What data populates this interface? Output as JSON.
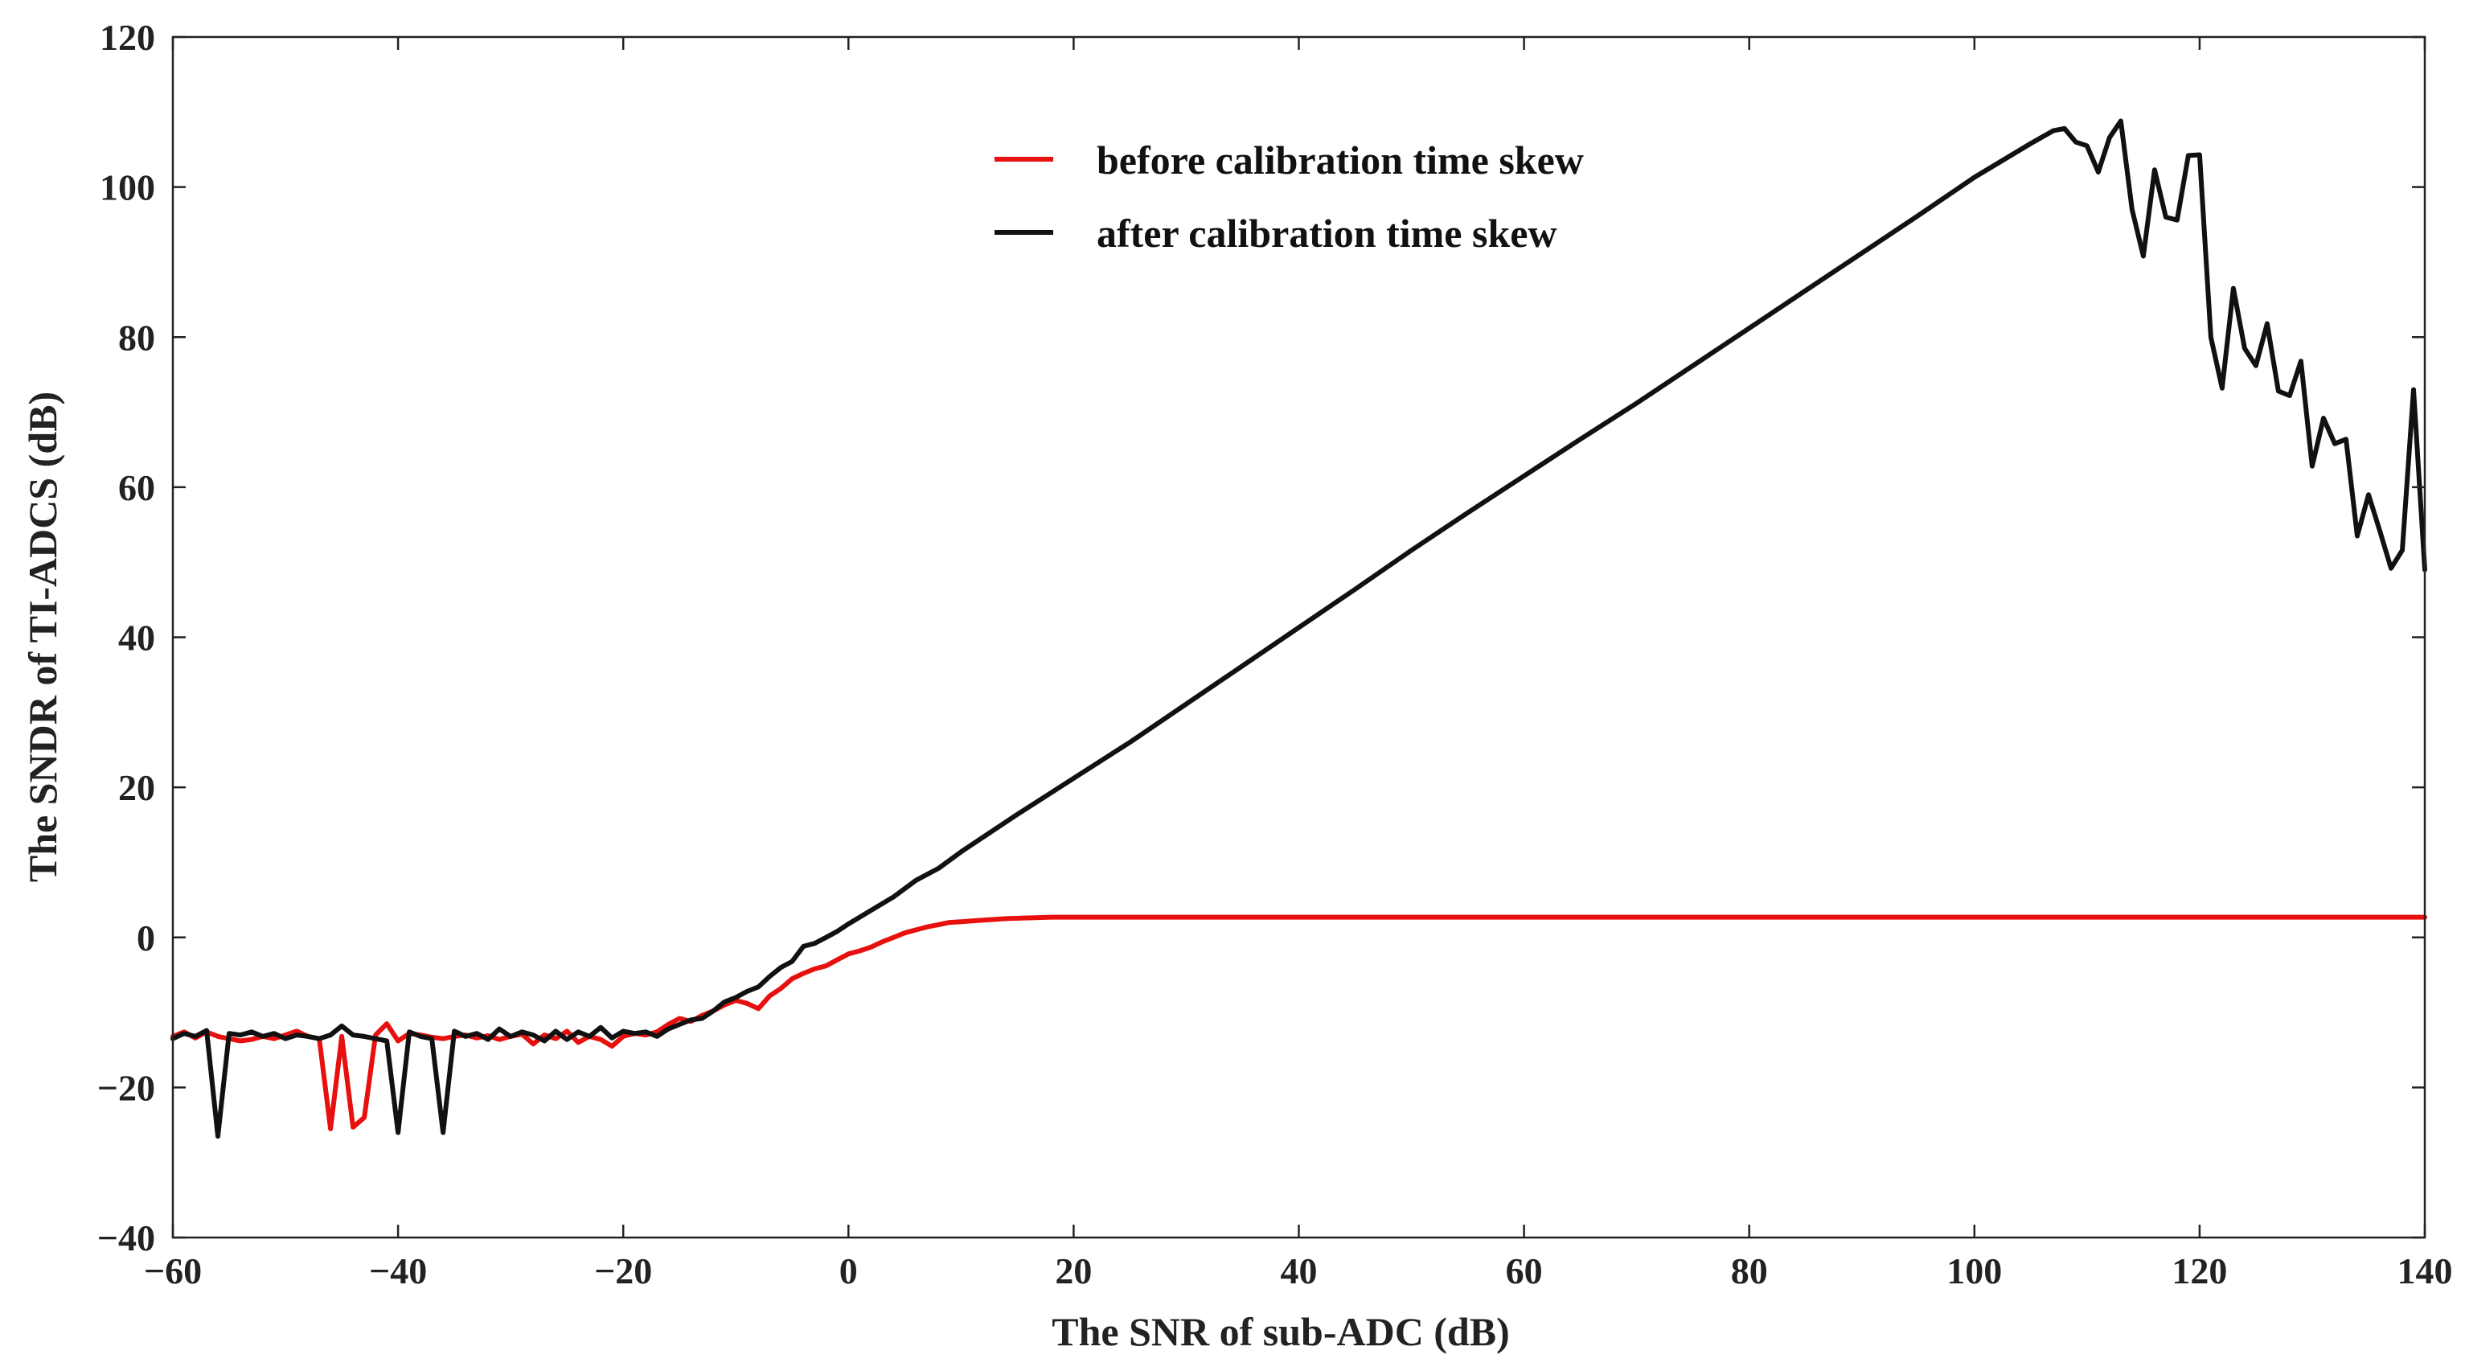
{
  "chart_data": {
    "type": "line",
    "title": "",
    "xlabel": "The SNR of sub-ADC (dB)",
    "ylabel": "The SNDR of TI-ADCS (dB)",
    "xlim": [
      -60,
      140
    ],
    "ylim": [
      -40,
      120
    ],
    "xticks": [
      -60,
      -40,
      -20,
      0,
      20,
      40,
      60,
      80,
      100,
      120,
      140
    ],
    "yticks": [
      -40,
      -20,
      0,
      20,
      40,
      60,
      80,
      100,
      120
    ],
    "xtick_labels": [
      "−60",
      "−40",
      "−20",
      "0",
      "20",
      "40",
      "60",
      "80",
      "100",
      "120",
      "140"
    ],
    "ytick_labels": [
      "−40",
      "−20",
      "0",
      "20",
      "40",
      "60",
      "80",
      "100",
      "120"
    ],
    "grid": false,
    "legend_position": "top-center",
    "series": [
      {
        "name": "before calibration time skew",
        "color": "#e8100e",
        "x": [
          -60,
          -59,
          -58,
          -57,
          -56,
          -55,
          -54,
          -53,
          -52,
          -51,
          -50,
          -49,
          -48,
          -47,
          -46,
          -45,
          -44,
          -43,
          -42,
          -41,
          -40,
          -39,
          -38,
          -37,
          -36,
          -35,
          -34,
          -33,
          -32,
          -31,
          -30,
          -29,
          -28,
          -27,
          -26,
          -25,
          -24,
          -23,
          -22,
          -21,
          -20,
          -19,
          -18,
          -17,
          -16,
          -15,
          -14,
          -13,
          -12,
          -11,
          -10,
          -9,
          -8,
          -7,
          -6,
          -5,
          -4,
          -3,
          -2,
          -1,
          0,
          1,
          2,
          3,
          4,
          5,
          6,
          7,
          8,
          9,
          10,
          12,
          14,
          16,
          18,
          20,
          25,
          30,
          40,
          60,
          80,
          100,
          120,
          140
        ],
        "y": [
          -13.2,
          -12.6,
          -13.4,
          -12.6,
          -13.2,
          -13.5,
          -13.8,
          -13.6,
          -13.2,
          -13.5,
          -13.0,
          -12.5,
          -13.2,
          -13.5,
          -25.5,
          -13.2,
          -25.3,
          -24.0,
          -13.0,
          -11.5,
          -13.8,
          -12.8,
          -13.0,
          -13.3,
          -13.5,
          -13.2,
          -13.0,
          -13.4,
          -13.1,
          -13.6,
          -13.2,
          -12.9,
          -14.2,
          -13.0,
          -13.5,
          -12.5,
          -14.0,
          -13.2,
          -13.6,
          -14.5,
          -13.2,
          -12.8,
          -13.0,
          -12.6,
          -11.6,
          -10.8,
          -11.2,
          -10.4,
          -9.8,
          -9.0,
          -8.4,
          -8.8,
          -9.5,
          -7.8,
          -6.8,
          -5.5,
          -4.8,
          -4.2,
          -3.8,
          -3.0,
          -2.2,
          -1.8,
          -1.3,
          -0.6,
          0.0,
          0.6,
          1.0,
          1.4,
          1.7,
          2.0,
          2.1,
          2.3,
          2.5,
          2.6,
          2.7,
          2.7,
          2.7,
          2.7,
          2.7,
          2.7,
          2.7,
          2.7,
          2.7,
          2.7
        ]
      },
      {
        "name": "after calibration time skew",
        "color": "#111111",
        "x": [
          -60,
          -59,
          -58,
          -57,
          -56,
          -55,
          -54,
          -53,
          -52,
          -51,
          -50,
          -49,
          -48,
          -47,
          -46,
          -45,
          -44,
          -43,
          -42,
          -41,
          -40,
          -39,
          -38,
          -37,
          -36,
          -35,
          -34,
          -33,
          -32,
          -31,
          -30,
          -29,
          -28,
          -27,
          -26,
          -25,
          -24,
          -23,
          -22,
          -21,
          -20,
          -19,
          -18,
          -17,
          -16,
          -15,
          -14,
          -13,
          -12,
          -11,
          -10,
          -9,
          -8,
          -7,
          -6,
          -5,
          -4,
          -3,
          -2,
          -1,
          0,
          2,
          4,
          6,
          8,
          10,
          15,
          20,
          25,
          30,
          35,
          40,
          45,
          50,
          55,
          60,
          65,
          70,
          75,
          80,
          85,
          90,
          95,
          100,
          105,
          107,
          108,
          109,
          110,
          111,
          112,
          113,
          114,
          115,
          116,
          117,
          118,
          119,
          120,
          121,
          122,
          123,
          124,
          125,
          126,
          127,
          128,
          129,
          130,
          131,
          132,
          133,
          134,
          135,
          136,
          137,
          138,
          139,
          140
        ],
        "y": [
          -13.5,
          -12.8,
          -13.2,
          -12.4,
          -26.5,
          -12.8,
          -13.0,
          -12.6,
          -13.2,
          -12.8,
          -13.5,
          -13.0,
          -13.2,
          -13.5,
          -13.0,
          -11.8,
          -13.0,
          -13.2,
          -13.5,
          -13.8,
          -26.0,
          -12.6,
          -13.2,
          -13.5,
          -26.0,
          -12.5,
          -13.2,
          -12.8,
          -13.6,
          -12.2,
          -13.2,
          -12.6,
          -13.0,
          -13.8,
          -12.5,
          -13.6,
          -12.6,
          -13.2,
          -12.0,
          -13.4,
          -12.5,
          -12.8,
          -12.6,
          -13.2,
          -12.2,
          -11.6,
          -11.0,
          -10.8,
          -9.8,
          -8.6,
          -8.0,
          -7.2,
          -6.6,
          -5.2,
          -4.0,
          -3.2,
          -1.2,
          -0.8,
          0.0,
          0.8,
          1.8,
          3.6,
          5.4,
          7.6,
          9.2,
          11.4,
          16.4,
          21.2,
          26.0,
          31.1,
          36.2,
          41.3,
          46.4,
          51.6,
          56.6,
          61.5,
          66.4,
          71.2,
          76.2,
          81.2,
          86.2,
          91.2,
          96.2,
          101.3,
          105.8,
          107.5,
          107.8,
          106.0,
          105.5,
          102.0,
          106.6,
          108.8,
          97.0,
          90.8,
          102.3,
          96.0,
          95.6,
          104.2,
          104.3,
          80.0,
          73.2,
          86.5,
          78.5,
          76.2,
          81.8,
          72.8,
          72.2,
          76.8,
          62.8,
          69.2,
          65.8,
          66.4,
          53.5,
          59.0,
          54.2,
          49.2,
          51.6,
          73.0,
          49.0
        ]
      }
    ]
  }
}
